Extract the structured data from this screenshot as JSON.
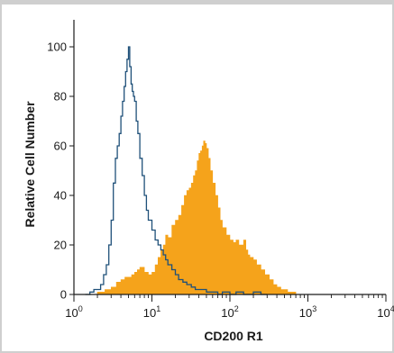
{
  "chart_data": {
    "type": "area",
    "title": "",
    "xlabel": "CD200 R1",
    "ylabel": "Relative Cell Number",
    "x_scale": "log",
    "xlim": [
      1,
      10000
    ],
    "ylim": [
      0,
      100
    ],
    "y_ticks": [
      0,
      20,
      40,
      60,
      80,
      100
    ],
    "x_ticks": [
      {
        "value": 1,
        "base": "10",
        "exp": "0"
      },
      {
        "value": 10,
        "base": "10",
        "exp": "1"
      },
      {
        "value": 100,
        "base": "10",
        "exp": "2"
      },
      {
        "value": 1000,
        "base": "10",
        "exp": "3"
      },
      {
        "value": 10000,
        "base": "10",
        "exp": "4"
      }
    ],
    "grid": false,
    "legend": "none",
    "series": [
      {
        "style": "filled",
        "color": "#f5a31b",
        "x": [
          1.5,
          2,
          2.5,
          3,
          3.5,
          4,
          4.5,
          5,
          5.5,
          6,
          6.5,
          7,
          8,
          9,
          10,
          11,
          12,
          13,
          14,
          15,
          16,
          18,
          20,
          22,
          24,
          26,
          28,
          30,
          32,
          34,
          36,
          38,
          40,
          42,
          44,
          46,
          48,
          50,
          53,
          56,
          60,
          65,
          70,
          75,
          80,
          90,
          100,
          110,
          120,
          130,
          140,
          150,
          160,
          170,
          180,
          200,
          220,
          250,
          280,
          320,
          360,
          400,
          450,
          500,
          550,
          600,
          700,
          750
        ],
        "y": [
          0,
          1,
          2,
          3,
          5,
          6,
          7,
          7,
          8,
          9,
          10,
          11,
          9,
          8,
          9,
          12,
          15,
          18,
          20,
          24,
          23,
          28,
          30,
          32,
          36,
          40,
          42,
          43,
          45,
          48,
          50,
          54,
          57,
          58,
          60,
          62,
          61,
          59,
          55,
          50,
          45,
          40,
          35,
          30,
          27,
          24,
          22,
          21,
          22,
          20,
          20,
          22,
          18,
          16,
          15,
          14,
          12,
          10,
          8,
          6,
          4,
          3,
          2,
          2,
          1,
          1,
          0,
          0
        ]
      },
      {
        "style": "outline",
        "color": "#1f5079",
        "x": [
          1.4,
          1.6,
          1.8,
          2,
          2.2,
          2.4,
          2.6,
          2.8,
          3,
          3.2,
          3.4,
          3.6,
          3.8,
          4,
          4.2,
          4.4,
          4.6,
          4.8,
          5,
          5.2,
          5.4,
          5.6,
          5.8,
          6,
          6.3,
          6.6,
          7,
          7.5,
          8,
          8.5,
          9,
          10,
          11,
          12,
          13,
          14,
          15,
          16,
          18,
          20,
          22,
          25,
          28,
          32,
          36,
          40,
          50,
          60,
          70,
          80,
          100,
          120,
          150,
          200,
          250,
          300
        ],
        "y": [
          0,
          1,
          2,
          2,
          4,
          8,
          12,
          20,
          30,
          45,
          55,
          60,
          65,
          72,
          78,
          84,
          90,
          95,
          100,
          92,
          85,
          82,
          80,
          78,
          70,
          65,
          55,
          48,
          40,
          34,
          30,
          26,
          22,
          20,
          18,
          16,
          14,
          12,
          10,
          8,
          6,
          5,
          4,
          3,
          2,
          2,
          1,
          1,
          0,
          1,
          0,
          1,
          0,
          1,
          0,
          0
        ]
      }
    ]
  }
}
